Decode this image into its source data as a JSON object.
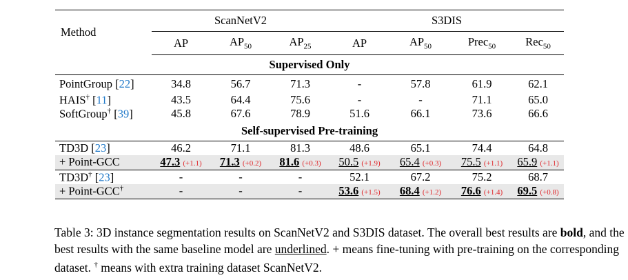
{
  "header": {
    "method": "Method",
    "groups": [
      "ScanNetV2",
      "S3DIS"
    ],
    "columns": [
      {
        "base": "AP",
        "sub": ""
      },
      {
        "base": "AP",
        "sub": "50"
      },
      {
        "base": "AP",
        "sub": "25"
      },
      {
        "base": "AP",
        "sub": ""
      },
      {
        "base": "AP",
        "sub": "50"
      },
      {
        "base": "Prec",
        "sub": "50"
      },
      {
        "base": "Rec",
        "sub": "50"
      }
    ]
  },
  "sections": [
    {
      "title": "Supervised Only",
      "blocks": [
        [
          {
            "name": "PointGroup",
            "dagger": false,
            "ref": "22",
            "gray": false,
            "cells": [
              {
                "v": "34.8"
              },
              {
                "v": "56.7"
              },
              {
                "v": "71.3"
              },
              {
                "v": "-"
              },
              {
                "v": "57.8"
              },
              {
                "v": "61.9"
              },
              {
                "v": "62.1"
              }
            ]
          },
          {
            "name": "HAIS",
            "dagger": true,
            "ref": "11",
            "gray": false,
            "cells": [
              {
                "v": "43.5"
              },
              {
                "v": "64.4"
              },
              {
                "v": "75.6"
              },
              {
                "v": "-"
              },
              {
                "v": "-"
              },
              {
                "v": "71.1"
              },
              {
                "v": "65.0"
              }
            ]
          },
          {
            "name": "SoftGroup",
            "dagger": true,
            "ref": "39",
            "gray": false,
            "cells": [
              {
                "v": "45.8"
              },
              {
                "v": "67.6"
              },
              {
                "v": "78.9"
              },
              {
                "v": "51.6"
              },
              {
                "v": "66.1"
              },
              {
                "v": "73.6"
              },
              {
                "v": "66.6"
              }
            ]
          }
        ]
      ]
    },
    {
      "title": "Self-supervised Pre-training",
      "blocks": [
        [
          {
            "name": "TD3D",
            "dagger": false,
            "ref": "23",
            "gray": false,
            "cells": [
              {
                "v": "46.2"
              },
              {
                "v": "71.1"
              },
              {
                "v": "81.3"
              },
              {
                "v": "48.6"
              },
              {
                "v": "65.1"
              },
              {
                "v": "74.4"
              },
              {
                "v": "64.8"
              }
            ]
          },
          {
            "name": "+ Point-GCC",
            "dagger": false,
            "ref": "",
            "gray": true,
            "cells": [
              {
                "v": "47.3",
                "b": true,
                "u": true,
                "d": "(+1.1)"
              },
              {
                "v": "71.3",
                "b": true,
                "u": true,
                "d": "(+0.2)"
              },
              {
                "v": "81.6",
                "b": true,
                "u": true,
                "d": "(+0.3)"
              },
              {
                "v": "50.5",
                "u": true,
                "d": "(+1.9)"
              },
              {
                "v": "65.4",
                "u": true,
                "d": "(+0.3)"
              },
              {
                "v": "75.5",
                "u": true,
                "d": "(+1.1)"
              },
              {
                "v": "65.9",
                "u": true,
                "d": "(+1.1)"
              }
            ]
          }
        ],
        [
          {
            "name": "TD3D",
            "dagger": true,
            "ref": "23",
            "gray": false,
            "cells": [
              {
                "v": "-"
              },
              {
                "v": "-"
              },
              {
                "v": "-"
              },
              {
                "v": "52.1"
              },
              {
                "v": "67.2"
              },
              {
                "v": "75.2"
              },
              {
                "v": "68.7"
              }
            ]
          },
          {
            "name": "+ Point-GCC",
            "dagger": true,
            "ref": "",
            "gray": true,
            "cells": [
              {
                "v": "-"
              },
              {
                "v": "-"
              },
              {
                "v": "-"
              },
              {
                "v": "53.6",
                "b": true,
                "u": true,
                "d": "(+1.5)"
              },
              {
                "v": "68.4",
                "b": true,
                "u": true,
                "d": "(+1.2)"
              },
              {
                "v": "76.6",
                "b": true,
                "u": true,
                "d": "(+1.4)"
              },
              {
                "v": "69.5",
                "b": true,
                "u": true,
                "d": "(+0.8)"
              }
            ]
          }
        ]
      ]
    }
  ],
  "caption": {
    "t1": "Table 3: 3D instance segmentation results on ScanNetV2 and S3DIS dataset. The overall best results are ",
    "bold": "bold",
    "t2": ", and the best results with the same baseline model are ",
    "underlined": "underlined",
    "t3": ". + means fine-tuning with pre-training on the corresponding dataset. ",
    "dagger": "†",
    "t4": " means with extra training dataset ScanNetV2."
  }
}
